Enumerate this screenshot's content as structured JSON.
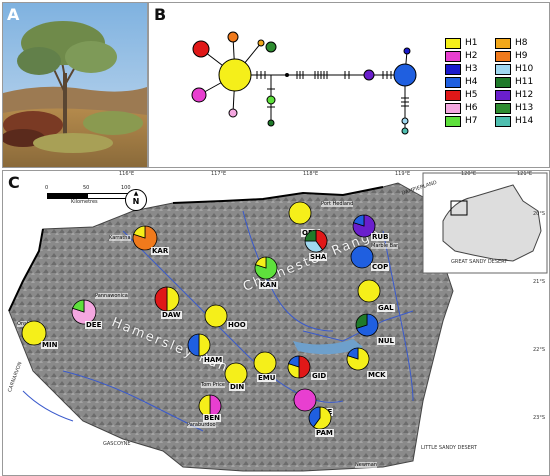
{
  "panels": {
    "a": "A",
    "b": "B",
    "c": "C"
  },
  "legend": [
    {
      "label": "H1",
      "color": "#f5ef1a"
    },
    {
      "label": "H2",
      "color": "#e83fd0"
    },
    {
      "label": "H3",
      "color": "#1a1acc"
    },
    {
      "label": "H4",
      "color": "#1f5fe0"
    },
    {
      "label": "H5",
      "color": "#e01818"
    },
    {
      "label": "H6",
      "color": "#f4a7e0"
    },
    {
      "label": "H7",
      "color": "#5ee03c"
    },
    {
      "label": "H8",
      "color": "#f2a71a"
    },
    {
      "label": "H9",
      "color": "#f07a1c"
    },
    {
      "label": "H10",
      "color": "#a0d8f0"
    },
    {
      "label": "H11",
      "color": "#1f7a2a"
    },
    {
      "label": "H12",
      "color": "#6a1fcc"
    },
    {
      "label": "H13",
      "color": "#2e8c30"
    },
    {
      "label": "H14",
      "color": "#4fbfb0"
    }
  ],
  "map": {
    "longitudes": [
      "116°E",
      "117°E",
      "118°E",
      "119°E",
      "120°E",
      "121°E"
    ],
    "latitudes": [
      "20°S",
      "21°S",
      "22°S",
      "23°S"
    ],
    "scale_label": "Kilometres",
    "scale_ticks": [
      "0",
      "50",
      "100"
    ],
    "north": "N",
    "ranges": [
      "Chichester Range",
      "Hamersley Range"
    ],
    "towns": [
      "Port Hedland",
      "Karratha",
      "Marble Bar",
      "Pannawonica",
      "Onslow",
      "Tom Price",
      "Paraburdoo",
      "Newman"
    ],
    "regions": [
      "CARNARVON",
      "GASCOYNE",
      "GREAT SANDY DESERT",
      "LITTLE SANDY DESERT",
      "DAMPIERLAND"
    ],
    "sites": [
      {
        "code": "KAR"
      },
      {
        "code": "ORD"
      },
      {
        "code": "RUB"
      },
      {
        "code": "SHA"
      },
      {
        "code": "COP"
      },
      {
        "code": "KAN"
      },
      {
        "code": "GAL"
      },
      {
        "code": "DEE"
      },
      {
        "code": "DAW"
      },
      {
        "code": "HOO"
      },
      {
        "code": "MIN"
      },
      {
        "code": "NUL"
      },
      {
        "code": "HAM"
      },
      {
        "code": "EMU"
      },
      {
        "code": "GID"
      },
      {
        "code": "MCK"
      },
      {
        "code": "DIN"
      },
      {
        "code": "BEN"
      },
      {
        "code": "WEE"
      },
      {
        "code": "PAM"
      }
    ]
  }
}
